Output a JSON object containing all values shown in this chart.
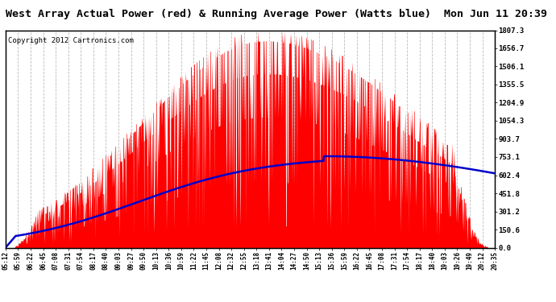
{
  "title": "West Array Actual Power (red) & Running Average Power (Watts blue)  Mon Jun 11 20:39",
  "copyright": "Copyright 2012 Cartronics.com",
  "ylabel_right": [
    "1807.3",
    "1656.7",
    "1506.1",
    "1355.5",
    "1204.9",
    "1054.3",
    "903.7",
    "753.1",
    "602.4",
    "451.8",
    "301.2",
    "150.6",
    "0.0"
  ],
  "ytick_values": [
    1807.3,
    1656.7,
    1506.1,
    1355.5,
    1204.9,
    1054.3,
    903.7,
    753.1,
    602.4,
    451.8,
    301.2,
    150.6,
    0.0
  ],
  "ymax": 1807.3,
  "ymin": 0.0,
  "background_color": "#ffffff",
  "plot_background": "#ffffff",
  "grid_color": "#bbbbbb",
  "bar_color": "#ff0000",
  "line_color": "#0000cc",
  "title_fontsize": 9.5,
  "copyright_fontsize": 6.5,
  "x_tick_labels": [
    "05:12",
    "05:59",
    "06:22",
    "06:45",
    "07:08",
    "07:31",
    "07:54",
    "08:17",
    "08:40",
    "09:03",
    "09:27",
    "09:50",
    "10:13",
    "10:36",
    "10:59",
    "11:22",
    "11:45",
    "12:08",
    "12:32",
    "12:55",
    "13:18",
    "13:41",
    "14:04",
    "14:27",
    "14:50",
    "15:13",
    "15:36",
    "15:59",
    "16:22",
    "16:45",
    "17:08",
    "17:31",
    "17:54",
    "18:17",
    "18:40",
    "19:03",
    "19:26",
    "19:49",
    "20:12",
    "20:35"
  ]
}
